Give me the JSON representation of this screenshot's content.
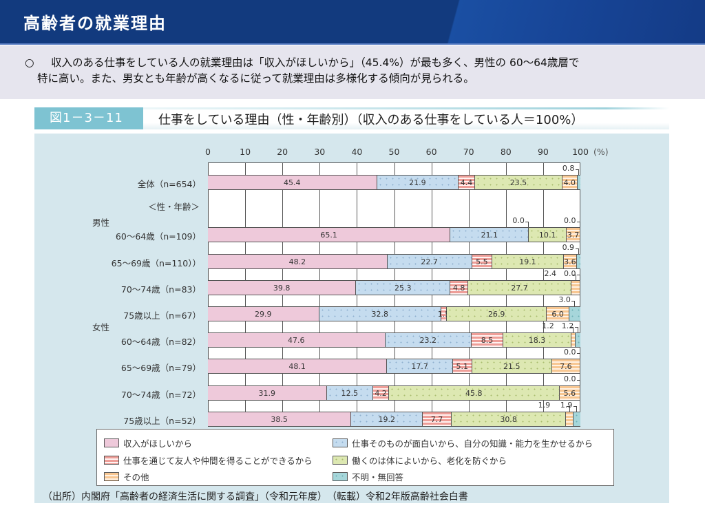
{
  "header": {
    "title": "高齢者の就業理由"
  },
  "summary": {
    "bullet": "○",
    "line1": "収入のある仕事をしている人の就業理由は「収入がほしいから」（45.4%）が最も多く、男性の 60～64歳層で",
    "line2": "特に高い。また、男女とも年齢が高くなるに従って就業理由は多様化する傾向が見られる。"
  },
  "figure": {
    "number": "図1－3－11",
    "title": "仕事をしている理由（性・年齢別）（収入のある仕事をしている人＝100%）",
    "axis_unit": "(%)",
    "source": "（出所）内閣府「高齢者の経済生活に関する調査」（令和元年度）　（転載）令和2年版高齢社会白書"
  },
  "group_labels": {
    "section": "＜性・年齢＞",
    "male": "男性",
    "female": "女性"
  },
  "colors": {
    "income": "#eec9da",
    "interest": "#c5dcef",
    "friends": "#ee9e98",
    "health": "#dde8b2",
    "other": "#f8c792",
    "unknown": "#a6d6da",
    "header_bg": "#123a7e",
    "panel_bg": "#d5e7ed",
    "fig_num_bg": "#7ec3d2"
  },
  "chart_data": {
    "type": "bar",
    "orientation": "horizontal",
    "stacked": true,
    "title": "仕事をしている理由（性・年齢別）（収入のある仕事をしている人＝100%）",
    "xlabel": "(%)",
    "ylabel": "",
    "xlim": [
      0,
      100
    ],
    "xticks": [
      0,
      10,
      20,
      30,
      40,
      50,
      60,
      70,
      80,
      90,
      100
    ],
    "grid": true,
    "legend_position": "bottom",
    "categories": [
      "全体（n=654）",
      "男性　60～64歳（n=109）",
      "65～69歳（n=110））",
      "70～74歳（n=83）",
      "75歳以上（n=67）",
      "女性　60～64歳（n=82）",
      "65～69歳（n=79）",
      "70～74歳（n=72）",
      "75歳以上（n=52）"
    ],
    "series": [
      {
        "name": "収入がほしいから",
        "values": [
          45.4,
          65.1,
          48.2,
          39.8,
          29.9,
          47.6,
          48.1,
          31.9,
          38.5
        ]
      },
      {
        "name": "仕事そのものが面白いから、自分の知識・能力を生かせるから",
        "values": [
          21.9,
          21.1,
          22.7,
          25.3,
          32.8,
          23.2,
          17.7,
          12.5,
          19.2
        ]
      },
      {
        "name": "仕事を通じて友人や仲間を得ることができるから",
        "values": [
          4.4,
          0.0,
          5.5,
          4.8,
          1.5,
          8.5,
          5.1,
          4.2,
          7.7
        ]
      },
      {
        "name": "働くのは体によいから、老化を防ぐから",
        "values": [
          23.5,
          10.1,
          19.1,
          27.7,
          26.9,
          18.3,
          21.5,
          45.8,
          30.8
        ]
      },
      {
        "name": "その他",
        "values": [
          4.0,
          3.7,
          3.6,
          2.4,
          6.0,
          1.2,
          7.6,
          5.6,
          1.9
        ]
      },
      {
        "name": "不明・無回答",
        "values": [
          0.8,
          0.0,
          0.9,
          0.0,
          3.0,
          1.2,
          0.0,
          0.0,
          1.9
        ]
      }
    ]
  },
  "rows": [
    {
      "label": "全体（n=654）",
      "group": "",
      "values": [
        45.4,
        21.9,
        4.4,
        23.5,
        4.0,
        0.8
      ],
      "texts": [
        "45.4",
        "21.9",
        "4.4",
        "23.5",
        "4.0",
        ""
      ],
      "annotations": [
        {
          "text": "0.8",
          "seg": 5
        }
      ]
    },
    {
      "label": "60～64歳（n=109）",
      "group": "male",
      "values": [
        65.1,
        21.1,
        0.0,
        10.1,
        3.7,
        0.0
      ],
      "texts": [
        "65.1",
        "21.1",
        "",
        "10.1",
        "3.7",
        ""
      ],
      "annotations": [
        {
          "text": "0.0",
          "seg": 2
        },
        {
          "text": "0.0",
          "seg": 5
        }
      ]
    },
    {
      "label": "65～69歳（n=110））",
      "group": "",
      "values": [
        48.2,
        22.7,
        5.5,
        19.1,
        3.6,
        0.9
      ],
      "texts": [
        "48.2",
        "22.7",
        "5.5",
        "19.1",
        "3.6",
        ""
      ],
      "annotations": [
        {
          "text": "0.9",
          "seg": 5
        }
      ]
    },
    {
      "label": "70～74歳（n=83）",
      "group": "",
      "values": [
        39.8,
        25.3,
        4.8,
        27.7,
        2.4,
        0.0
      ],
      "texts": [
        "39.8",
        "25.3",
        "4.8",
        "27.7",
        "",
        ""
      ],
      "annotations": [
        {
          "text": "2.4",
          "seg": 4
        },
        {
          "text": "0.0",
          "seg": 5
        }
      ]
    },
    {
      "label": "75歳以上（n=67）",
      "group": "",
      "values": [
        29.9,
        32.8,
        1.5,
        26.9,
        6.0,
        3.0
      ],
      "texts": [
        "29.9",
        "32.8",
        "1.5",
        "26.9",
        "6.0",
        ""
      ],
      "annotations": [
        {
          "text": "3.0",
          "seg": 5
        }
      ]
    },
    {
      "label": "60～64歳（n=82）",
      "group": "female",
      "values": [
        47.6,
        23.2,
        8.5,
        18.3,
        1.2,
        1.2
      ],
      "texts": [
        "47.6",
        "23.2",
        "8.5",
        "18.3",
        "",
        ""
      ],
      "annotations": [
        {
          "text": "1.2",
          "seg": 4
        },
        {
          "text": "1.2",
          "seg": 5
        }
      ]
    },
    {
      "label": "65～69歳（n=79）",
      "group": "",
      "values": [
        48.1,
        17.7,
        5.1,
        21.5,
        7.6,
        0.0
      ],
      "texts": [
        "48.1",
        "17.7",
        "5.1",
        "21.5",
        "7.6",
        ""
      ],
      "annotations": [
        {
          "text": "0.0",
          "seg": 5
        }
      ]
    },
    {
      "label": "70～74歳（n=72）",
      "group": "",
      "values": [
        31.9,
        12.5,
        4.2,
        45.8,
        5.6,
        0.0
      ],
      "texts": [
        "31.9",
        "12.5",
        "4.2",
        "45.8",
        "5.6",
        ""
      ],
      "annotations": [
        {
          "text": "0.0",
          "seg": 5
        }
      ]
    },
    {
      "label": "75歳以上（n=52）",
      "group": "",
      "values": [
        38.5,
        19.2,
        7.7,
        30.8,
        1.9,
        1.9
      ],
      "texts": [
        "38.5",
        "19.2",
        "7.7",
        "30.8",
        "",
        ""
      ],
      "annotations": [
        {
          "text": "1.9",
          "seg": 4
        },
        {
          "text": "1.9",
          "seg": 5
        }
      ]
    }
  ],
  "legend": [
    {
      "label": "収入がほしいから",
      "cls": "s0"
    },
    {
      "label": "仕事そのものが面白いから、自分の知識・能力を生かせるから",
      "cls": "s1"
    },
    {
      "label": "仕事を通じて友人や仲間を得ることができるから",
      "cls": "s2"
    },
    {
      "label": "働くのは体によいから、老化を防ぐから",
      "cls": "s3"
    },
    {
      "label": "その他",
      "cls": "s4"
    },
    {
      "label": "不明・無回答",
      "cls": "s5"
    }
  ]
}
